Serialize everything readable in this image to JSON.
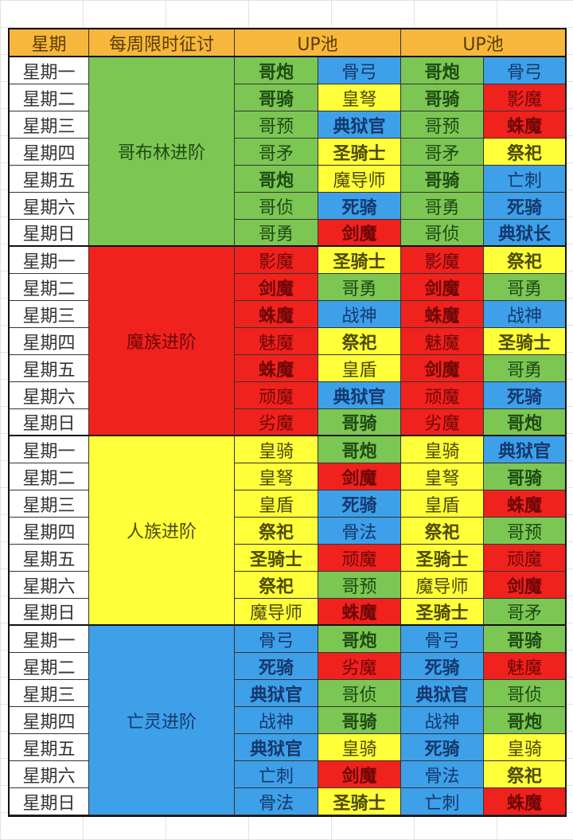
{
  "header": {
    "day": "星期",
    "event": "每周限时征讨",
    "pool1": "UP池",
    "pool2": "UP池"
  },
  "colors": {
    "green": "#7cc654",
    "blue": "#3ea0e8",
    "yellow": "#ffff3a",
    "red": "#f0221e",
    "header": "#f6b73c"
  },
  "days": [
    "星期一",
    "星期二",
    "星期三",
    "星期四",
    "星期五",
    "星期六",
    "星期日"
  ],
  "groups": [
    {
      "name": "哥布林进阶",
      "color": "green",
      "rows": [
        [
          [
            "哥炮",
            "green",
            1
          ],
          [
            "骨弓",
            "blue",
            0
          ],
          [
            "哥炮",
            "green",
            1
          ],
          [
            "骨弓",
            "blue",
            0
          ]
        ],
        [
          [
            "哥骑",
            "green",
            1
          ],
          [
            "皇弩",
            "yellow",
            0
          ],
          [
            "哥骑",
            "green",
            1
          ],
          [
            "影魔",
            "red",
            0
          ]
        ],
        [
          [
            "哥预",
            "green",
            0
          ],
          [
            "典狱官",
            "blue",
            1
          ],
          [
            "哥预",
            "green",
            0
          ],
          [
            "蛛魔",
            "red",
            1
          ]
        ],
        [
          [
            "哥矛",
            "green",
            0
          ],
          [
            "圣骑士",
            "yellow",
            1
          ],
          [
            "哥矛",
            "green",
            0
          ],
          [
            "祭祀",
            "yellow",
            1
          ]
        ],
        [
          [
            "哥炮",
            "green",
            1
          ],
          [
            "魔导师",
            "yellow",
            0
          ],
          [
            "哥骑",
            "green",
            1
          ],
          [
            "亡刺",
            "blue",
            0
          ]
        ],
        [
          [
            "哥侦",
            "green",
            0
          ],
          [
            "死骑",
            "blue",
            1
          ],
          [
            "哥勇",
            "green",
            0
          ],
          [
            "死骑",
            "blue",
            1
          ]
        ],
        [
          [
            "哥勇",
            "green",
            0
          ],
          [
            "剑魔",
            "red",
            1
          ],
          [
            "哥侦",
            "green",
            0
          ],
          [
            "典狱长",
            "blue",
            1
          ]
        ]
      ]
    },
    {
      "name": "魔族进阶",
      "color": "red",
      "rows": [
        [
          [
            "影魔",
            "red",
            0
          ],
          [
            "圣骑士",
            "yellow",
            1
          ],
          [
            "影魔",
            "red",
            0
          ],
          [
            "祭祀",
            "yellow",
            1
          ]
        ],
        [
          [
            "剑魔",
            "red",
            1
          ],
          [
            "哥勇",
            "green",
            0
          ],
          [
            "剑魔",
            "red",
            1
          ],
          [
            "哥勇",
            "green",
            0
          ]
        ],
        [
          [
            "蛛魔",
            "red",
            1
          ],
          [
            "战神",
            "blue",
            0
          ],
          [
            "蛛魔",
            "red",
            1
          ],
          [
            "战神",
            "blue",
            0
          ]
        ],
        [
          [
            "魅魔",
            "red",
            0
          ],
          [
            "祭祀",
            "yellow",
            1
          ],
          [
            "魅魔",
            "red",
            0
          ],
          [
            "圣骑士",
            "yellow",
            1
          ]
        ],
        [
          [
            "蛛魔",
            "red",
            1
          ],
          [
            "皇盾",
            "yellow",
            0
          ],
          [
            "剑魔",
            "red",
            1
          ],
          [
            "哥勇",
            "green",
            0
          ]
        ],
        [
          [
            "顽魔",
            "red",
            0
          ],
          [
            "典狱官",
            "blue",
            1
          ],
          [
            "顽魔",
            "red",
            0
          ],
          [
            "死骑",
            "blue",
            1
          ]
        ],
        [
          [
            "劣魔",
            "red",
            0
          ],
          [
            "哥骑",
            "green",
            1
          ],
          [
            "劣魔",
            "red",
            0
          ],
          [
            "哥炮",
            "green",
            1
          ]
        ]
      ]
    },
    {
      "name": "人族进阶",
      "color": "yellow",
      "rows": [
        [
          [
            "皇骑",
            "yellow",
            0
          ],
          [
            "哥炮",
            "green",
            1
          ],
          [
            "皇骑",
            "yellow",
            0
          ],
          [
            "典狱官",
            "blue",
            1
          ]
        ],
        [
          [
            "皇弩",
            "yellow",
            0
          ],
          [
            "剑魔",
            "red",
            1
          ],
          [
            "皇弩",
            "yellow",
            0
          ],
          [
            "哥骑",
            "green",
            1
          ]
        ],
        [
          [
            "皇盾",
            "yellow",
            0
          ],
          [
            "死骑",
            "blue",
            1
          ],
          [
            "皇盾",
            "yellow",
            0
          ],
          [
            "蛛魔",
            "red",
            1
          ]
        ],
        [
          [
            "祭祀",
            "yellow",
            1
          ],
          [
            "骨法",
            "blue",
            0
          ],
          [
            "祭祀",
            "yellow",
            1
          ],
          [
            "哥预",
            "green",
            0
          ]
        ],
        [
          [
            "圣骑士",
            "yellow",
            1
          ],
          [
            "顽魔",
            "red",
            0
          ],
          [
            "圣骑士",
            "yellow",
            1
          ],
          [
            "顽魔",
            "red",
            0
          ]
        ],
        [
          [
            "祭祀",
            "yellow",
            1
          ],
          [
            "哥预",
            "green",
            0
          ],
          [
            "魔导师",
            "yellow",
            0
          ],
          [
            "剑魔",
            "red",
            1
          ]
        ],
        [
          [
            "魔导师",
            "yellow",
            0
          ],
          [
            "蛛魔",
            "red",
            1
          ],
          [
            "圣骑士",
            "yellow",
            1
          ],
          [
            "哥矛",
            "green",
            0
          ]
        ]
      ]
    },
    {
      "name": "亡灵进阶",
      "color": "blue",
      "rows": [
        [
          [
            "骨弓",
            "blue",
            0
          ],
          [
            "哥炮",
            "green",
            1
          ],
          [
            "骨弓",
            "blue",
            0
          ],
          [
            "哥骑",
            "green",
            1
          ]
        ],
        [
          [
            "死骑",
            "blue",
            1
          ],
          [
            "劣魔",
            "red",
            0
          ],
          [
            "死骑",
            "blue",
            1
          ],
          [
            "魅魔",
            "red",
            0
          ]
        ],
        [
          [
            "典狱官",
            "blue",
            1
          ],
          [
            "哥侦",
            "green",
            0
          ],
          [
            "典狱官",
            "blue",
            1
          ],
          [
            "哥侦",
            "green",
            0
          ]
        ],
        [
          [
            "战神",
            "blue",
            0
          ],
          [
            "哥骑",
            "green",
            1
          ],
          [
            "战神",
            "blue",
            0
          ],
          [
            "哥炮",
            "green",
            1
          ]
        ],
        [
          [
            "典狱官",
            "blue",
            1
          ],
          [
            "皇骑",
            "yellow",
            0
          ],
          [
            "死骑",
            "blue",
            1
          ],
          [
            "皇骑",
            "yellow",
            0
          ]
        ],
        [
          [
            "亡刺",
            "blue",
            0
          ],
          [
            "剑魔",
            "red",
            1
          ],
          [
            "骨法",
            "blue",
            0
          ],
          [
            "祭祀",
            "yellow",
            1
          ]
        ],
        [
          [
            "骨法",
            "blue",
            0
          ],
          [
            "圣骑士",
            "yellow",
            1
          ],
          [
            "亡刺",
            "blue",
            0
          ],
          [
            "蛛魔",
            "red",
            1
          ]
        ]
      ]
    }
  ]
}
